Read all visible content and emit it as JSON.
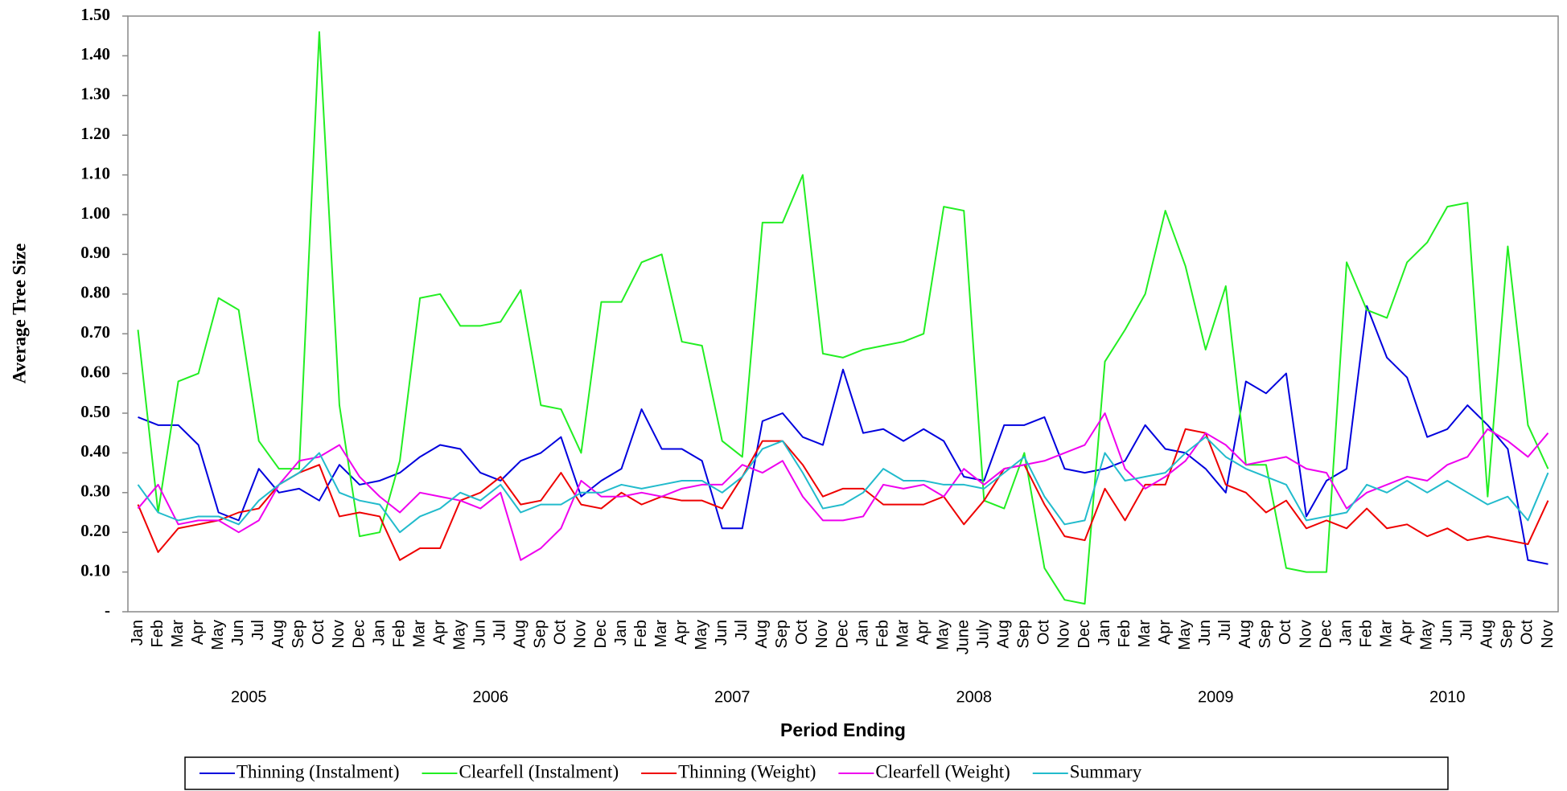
{
  "chart_data": {
    "type": "line",
    "y_label": "Average Tree Size",
    "x_label": "Period Ending",
    "categories": [
      "Jan",
      "Feb",
      "Mar",
      "Apr",
      "May",
      "Jun",
      "Jul",
      "Aug",
      "Sep",
      "Oct",
      "Nov",
      "Dec",
      "Jan",
      "Feb",
      "Mar",
      "Apr",
      "May",
      "Jun",
      "Jul",
      "Aug",
      "Sep",
      "Oct",
      "Nov",
      "Dec",
      "Jan",
      "Feb",
      "Mar",
      "Apr",
      "May",
      "Jun",
      "Jul",
      "Aug",
      "Sep",
      "Oct",
      "Nov",
      "Dec",
      "Jan",
      "Feb",
      "Mar",
      "Apr",
      "May",
      "June",
      "July",
      "Aug",
      "Sep",
      "Oct",
      "Nov",
      "Dec",
      "Jan",
      "Feb",
      "Mar",
      "Apr",
      "May",
      "Jun",
      "Jul",
      "Aug",
      "Sep",
      "Oct",
      "Nov",
      "Dec",
      "Jan",
      "Feb",
      "Mar",
      "Apr",
      "May",
      "Jun",
      "Jul",
      "Aug",
      "Sep",
      "Oct",
      "Nov"
    ],
    "x_groups": [
      {
        "label": "2005",
        "count": 12
      },
      {
        "label": "2006",
        "count": 12
      },
      {
        "label": "2007",
        "count": 12
      },
      {
        "label": "2008",
        "count": 12
      },
      {
        "label": "2009",
        "count": 12
      },
      {
        "label": "2010",
        "count": 11
      }
    ],
    "ylim": [
      0,
      1.5
    ],
    "yticks": [
      {
        "value": 0,
        "label": "-"
      },
      {
        "value": 0.1,
        "label": "0.10"
      },
      {
        "value": 0.2,
        "label": "0.20"
      },
      {
        "value": 0.3,
        "label": "0.30"
      },
      {
        "value": 0.4,
        "label": "0.40"
      },
      {
        "value": 0.5,
        "label": "0.50"
      },
      {
        "value": 0.6,
        "label": "0.60"
      },
      {
        "value": 0.7,
        "label": "0.70"
      },
      {
        "value": 0.8,
        "label": "0.80"
      },
      {
        "value": 0.9,
        "label": "0.90"
      },
      {
        "value": 1.0,
        "label": "1.00"
      },
      {
        "value": 1.1,
        "label": "1.10"
      },
      {
        "value": 1.2,
        "label": "1.20"
      },
      {
        "value": 1.3,
        "label": "1.30"
      },
      {
        "value": 1.4,
        "label": "1.40"
      },
      {
        "value": 1.5,
        "label": "1.50"
      }
    ],
    "grid": false,
    "legend": "bottom",
    "series": [
      {
        "name": "Thinning (Instalment)",
        "color": "#0000dd",
        "values": [
          0.49,
          0.47,
          0.47,
          0.42,
          0.25,
          0.23,
          0.36,
          0.3,
          0.31,
          0.28,
          0.37,
          0.32,
          0.33,
          0.35,
          0.39,
          0.42,
          0.41,
          0.35,
          0.33,
          0.38,
          0.4,
          0.44,
          0.29,
          0.33,
          0.36,
          0.51,
          0.41,
          0.41,
          0.38,
          0.21,
          0.21,
          0.48,
          0.5,
          0.44,
          0.42,
          0.61,
          0.45,
          0.46,
          0.43,
          0.46,
          0.43,
          0.34,
          0.33,
          0.47,
          0.47,
          0.49,
          0.36,
          0.35,
          0.36,
          0.38,
          0.47,
          0.41,
          0.4,
          0.36,
          0.3,
          0.58,
          0.55,
          0.6,
          0.24,
          0.33,
          0.36,
          0.77,
          0.64,
          0.59,
          0.44,
          0.46,
          0.52,
          0.47,
          0.41,
          0.13,
          0.12
        ]
      },
      {
        "name": "Clearfell (Instalment)",
        "color": "#22ee22",
        "values": [
          0.71,
          0.25,
          0.58,
          0.6,
          0.79,
          0.76,
          0.43,
          0.36,
          0.36,
          1.46,
          0.52,
          0.19,
          0.2,
          0.38,
          0.79,
          0.8,
          0.72,
          0.72,
          0.73,
          0.81,
          0.52,
          0.51,
          0.4,
          0.78,
          0.78,
          0.88,
          0.9,
          0.68,
          0.67,
          0.43,
          0.39,
          0.98,
          0.98,
          1.1,
          0.65,
          0.64,
          0.66,
          0.67,
          0.68,
          0.7,
          1.02,
          1.01,
          0.28,
          0.26,
          0.4,
          0.11,
          0.03,
          0.02,
          0.63,
          0.71,
          0.8,
          1.01,
          0.87,
          0.66,
          0.82,
          0.37,
          0.37,
          0.11,
          0.1,
          0.1,
          0.88,
          0.76,
          0.74,
          0.88,
          0.93,
          1.02,
          1.03,
          0.29,
          0.92,
          0.47,
          0.36
        ]
      },
      {
        "name": "Thinning (Weight)",
        "color": "#ee0000",
        "values": [
          0.27,
          0.15,
          0.21,
          0.22,
          0.23,
          0.25,
          0.26,
          0.32,
          0.35,
          0.37,
          0.24,
          0.25,
          0.24,
          0.13,
          0.16,
          0.16,
          0.28,
          0.3,
          0.34,
          0.27,
          0.28,
          0.35,
          0.27,
          0.26,
          0.3,
          0.27,
          0.29,
          0.28,
          0.28,
          0.26,
          0.34,
          0.43,
          0.43,
          0.37,
          0.29,
          0.31,
          0.31,
          0.27,
          0.27,
          0.27,
          0.29,
          0.22,
          0.28,
          0.36,
          0.37,
          0.27,
          0.19,
          0.18,
          0.31,
          0.23,
          0.32,
          0.32,
          0.46,
          0.45,
          0.32,
          0.3,
          0.25,
          0.28,
          0.21,
          0.23,
          0.21,
          0.26,
          0.21,
          0.22,
          0.19,
          0.21,
          0.18,
          0.19,
          0.18,
          0.17,
          0.28
        ]
      },
      {
        "name": "Clearfell (Weight)",
        "color": "#ee00ee",
        "values": [
          0.26,
          0.32,
          0.22,
          0.23,
          0.23,
          0.2,
          0.23,
          0.32,
          0.38,
          0.39,
          0.42,
          0.34,
          0.29,
          0.25,
          0.3,
          0.29,
          0.28,
          0.26,
          0.3,
          0.13,
          0.16,
          0.21,
          0.33,
          0.29,
          0.29,
          0.3,
          0.29,
          0.31,
          0.32,
          0.32,
          0.37,
          0.35,
          0.38,
          0.29,
          0.23,
          0.23,
          0.24,
          0.32,
          0.31,
          0.32,
          0.29,
          0.36,
          0.32,
          0.36,
          0.37,
          0.38,
          0.4,
          0.42,
          0.5,
          0.36,
          0.31,
          0.34,
          0.38,
          0.45,
          0.42,
          0.37,
          0.38,
          0.39,
          0.36,
          0.35,
          0.26,
          0.3,
          0.32,
          0.34,
          0.33,
          0.37,
          0.39,
          0.46,
          0.43,
          0.39,
          0.45
        ]
      },
      {
        "name": "Summary",
        "color": "#22bbcc",
        "values": [
          0.32,
          0.25,
          0.23,
          0.24,
          0.24,
          0.22,
          0.28,
          0.32,
          0.35,
          0.4,
          0.3,
          0.28,
          0.27,
          0.2,
          0.24,
          0.26,
          0.3,
          0.28,
          0.32,
          0.25,
          0.27,
          0.27,
          0.3,
          0.3,
          0.32,
          0.31,
          0.32,
          0.33,
          0.33,
          0.3,
          0.34,
          0.41,
          0.43,
          0.35,
          0.26,
          0.27,
          0.3,
          0.36,
          0.33,
          0.33,
          0.32,
          0.32,
          0.31,
          0.35,
          0.39,
          0.29,
          0.22,
          0.23,
          0.4,
          0.33,
          0.34,
          0.35,
          0.4,
          0.44,
          0.39,
          0.36,
          0.34,
          0.32,
          0.23,
          0.24,
          0.25,
          0.32,
          0.3,
          0.33,
          0.3,
          0.33,
          0.3,
          0.27,
          0.29,
          0.23,
          0.35
        ]
      }
    ]
  }
}
